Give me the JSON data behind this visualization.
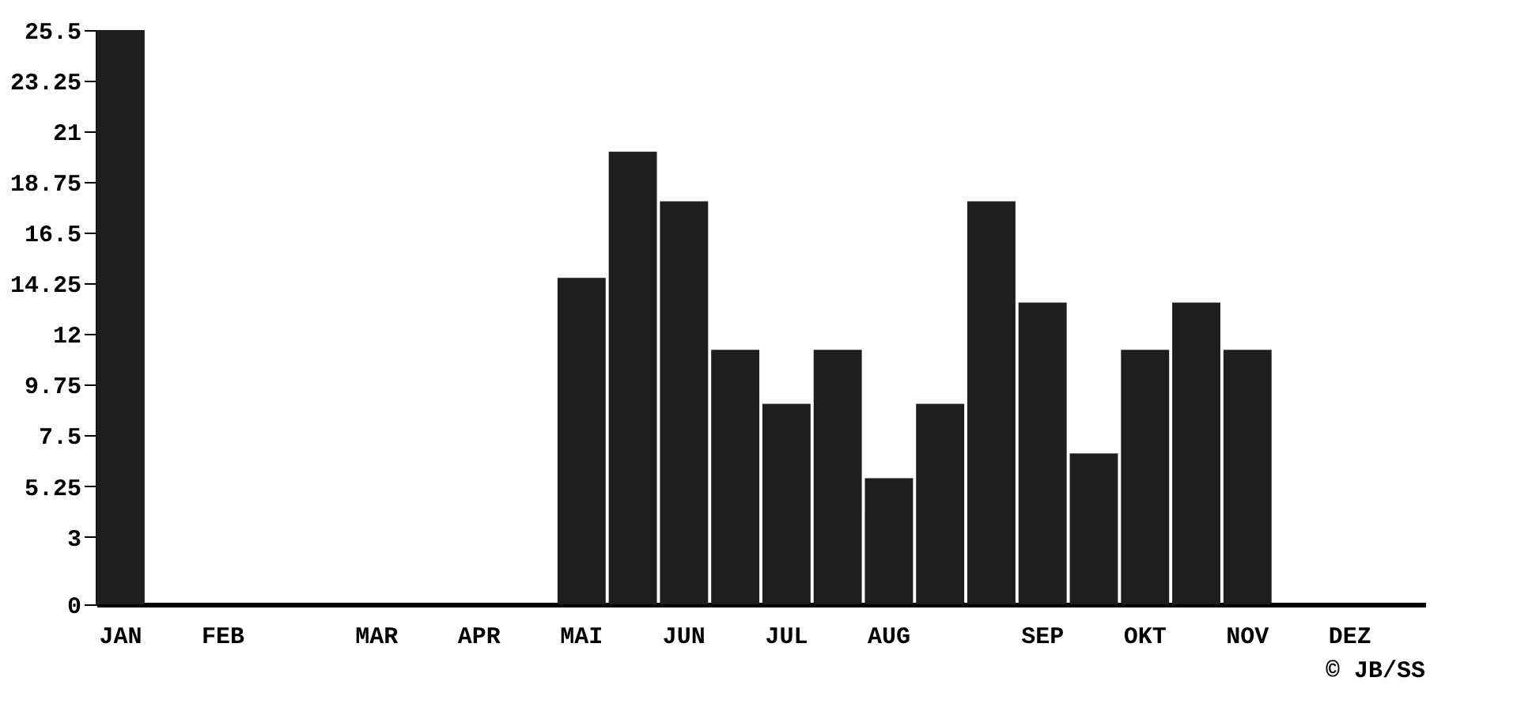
{
  "chart_data": {
    "type": "bar",
    "categories": [
      "JAN",
      null,
      "FEB",
      null,
      null,
      "MAR",
      null,
      "APR",
      null,
      "MAI",
      null,
      "JUN",
      null,
      "JUL",
      null,
      "AUG",
      null,
      null,
      "SEP",
      null,
      "OKT",
      null,
      "NOV",
      null,
      "DEZ",
      null
    ],
    "values": [
      25.5,
      0,
      0,
      0,
      0,
      0,
      0,
      0,
      0,
      14.5,
      20.1,
      17.9,
      11.3,
      8.9,
      11.3,
      5.6,
      8.9,
      17.9,
      13.4,
      6.7,
      11.3,
      13.4,
      11.3,
      0,
      0,
      0
    ],
    "color": "#1e1e1e",
    "ylim": [
      0,
      25.5
    ],
    "yticks": [
      0,
      3,
      5.25,
      7.5,
      9.75,
      12,
      14.25,
      16.5,
      18.75,
      21,
      23.25,
      25.5
    ],
    "grid": false,
    "annotations": [
      "© JB/SS"
    ]
  }
}
